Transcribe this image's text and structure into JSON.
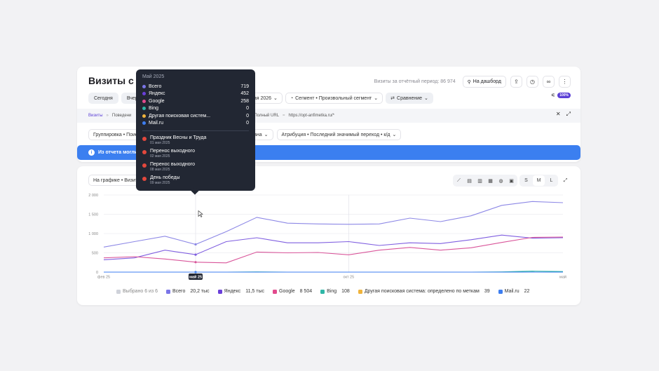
{
  "header": {
    "title": "Визиты с по",
    "period_label": "Визиты за отчётный период: 86 974",
    "dashboard_label": "На дашборд"
  },
  "dates": [
    "Сегодня",
    "Вчера"
  ],
  "controls": {
    "date_range_tail": "мая 2026",
    "segment_label": "Сегмент • Произвольный сегмент",
    "compare_label": "Сравнение",
    "sampling_badge": "100%"
  },
  "filter": {
    "root": "Визиты",
    "item1": "Поведени",
    "item2": "Полный URL",
    "value": "https://opt-anfimetka.ru/*"
  },
  "grouping": {
    "group_label": "Группировка • Поиск",
    "mid_label": "ана",
    "attribution_label": "Атрибуция • Последний значимый переход • к/д"
  },
  "banner": {
    "text": "Из отчета могли бы"
  },
  "chart_toolbar": {
    "graph_label": "На графике • Визиты",
    "sizes": [
      "S",
      "M",
      "L"
    ]
  },
  "tooltip": {
    "title": "Май 2025",
    "rows": [
      {
        "label": "Всего",
        "value": "719",
        "color": "#7b76e8"
      },
      {
        "label": "Яндекс",
        "value": "452",
        "color": "#6a3fd9"
      },
      {
        "label": "Google",
        "value": "258",
        "color": "#e24a8d"
      },
      {
        "label": "Bing",
        "value": "0",
        "color": "#2fb7a7"
      },
      {
        "label": "Другая поисковая систем...",
        "value": "0",
        "color": "#f0b43c"
      },
      {
        "label": "Mail.ru",
        "value": "0",
        "color": "#3d7ef0"
      }
    ],
    "events": [
      {
        "name": "Праздник Весны и Труда",
        "date": "01 мая 2025"
      },
      {
        "name": "Перенос выходного",
        "date": "02 мая 2025"
      },
      {
        "name": "Перенос выходного",
        "date": "08 мая 2025"
      },
      {
        "name": "День победы",
        "date": "09 мая 2025"
      }
    ]
  },
  "chart_data": {
    "type": "line",
    "x": [
      "фев 25",
      "мар 25",
      "апр 25",
      "май 25",
      "июн 25",
      "июл 25",
      "авг 25",
      "сен 25",
      "окт 25",
      "ноя 25",
      "дек 25",
      "янв 26",
      "фев 26",
      "мар 26",
      "апр 26",
      "май 26"
    ],
    "x_ticks": [
      "фев 25",
      "май 25",
      "окт 25",
      "май"
    ],
    "highlighted_x": "май 25",
    "ylim": [
      0,
      2000
    ],
    "y_ticks": [
      0,
      500,
      1000,
      1500,
      2000
    ],
    "series": [
      {
        "name": "Всего",
        "color": "#8d88e6",
        "values": [
          650,
          790,
          930,
          719,
          1050,
          1420,
          1270,
          1250,
          1240,
          1250,
          1400,
          1310,
          1460,
          1730,
          1830,
          1800
        ]
      },
      {
        "name": "Яндекс",
        "color": "#7f5ee0",
        "values": [
          320,
          370,
          570,
          452,
          790,
          890,
          760,
          760,
          790,
          690,
          760,
          740,
          840,
          960,
          880,
          890
        ]
      },
      {
        "name": "Google",
        "color": "#d9559a",
        "values": [
          370,
          400,
          340,
          258,
          240,
          520,
          500,
          510,
          450,
          570,
          640,
          570,
          630,
          770,
          900,
          910
        ]
      },
      {
        "name": "Bing",
        "color": "#2fb7a7",
        "values": [
          0,
          0,
          0,
          0,
          0,
          5,
          0,
          0,
          0,
          0,
          0,
          0,
          0,
          5,
          25,
          15
        ]
      },
      {
        "name": "Другая поисковая система: определено по меткам",
        "color": "#f0b43c",
        "values": [
          0,
          0,
          0,
          0,
          0,
          0,
          0,
          0,
          0,
          0,
          0,
          0,
          0,
          0,
          0,
          0
        ]
      },
      {
        "name": "Mail.ru",
        "color": "#3d7ef0",
        "values": [
          0,
          0,
          0,
          0,
          0,
          0,
          0,
          0,
          0,
          0,
          0,
          0,
          0,
          0,
          0,
          0
        ]
      }
    ],
    "grid": true
  },
  "legend": {
    "selected_label": "Выбрано 6 из 6",
    "items": [
      {
        "name": "Всего",
        "value": "20,2 тыс",
        "color": "#7b76e8"
      },
      {
        "name": "Яндекс",
        "value": "11,5 тыс",
        "color": "#6a3fd9"
      },
      {
        "name": "Google",
        "value": "8 504",
        "color": "#e24a8d"
      },
      {
        "name": "Bing",
        "value": "108",
        "color": "#2fb7a7"
      },
      {
        "name": "Другая поисковая система: определено по меткам",
        "value": "39",
        "color": "#f0b43c"
      },
      {
        "name": "Mail.ru",
        "value": "22",
        "color": "#3d7ef0"
      }
    ]
  }
}
